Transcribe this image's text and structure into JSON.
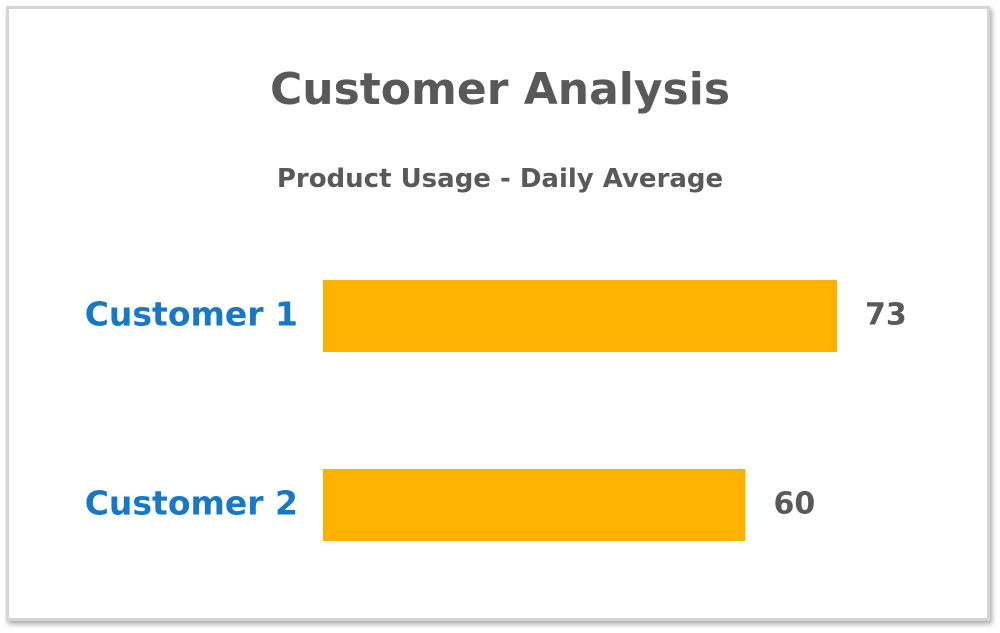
{
  "chart_data": {
    "type": "bar",
    "orientation": "horizontal",
    "title": "Customer Analysis",
    "subtitle": "Product Usage - Daily Average",
    "categories": [
      "Customer 1",
      "Customer 2"
    ],
    "values": [
      73,
      60
    ],
    "xlim": [
      0,
      73
    ],
    "grid": false,
    "legend": "none",
    "colors": {
      "bar": "#FFB300",
      "category_label": "#1878C8",
      "text": "#595959"
    }
  }
}
